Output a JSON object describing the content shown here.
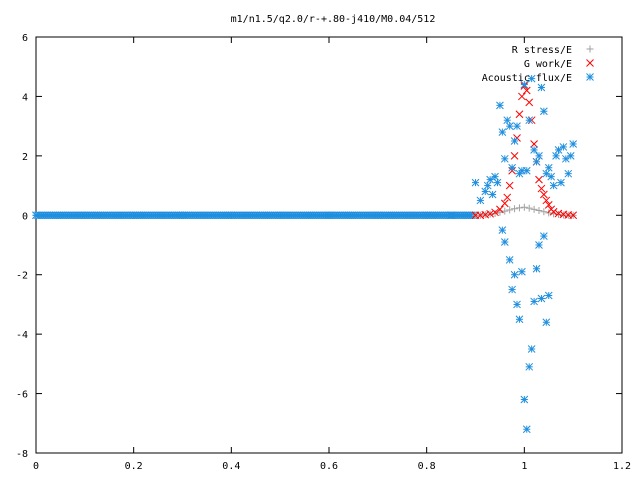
{
  "chart_data": {
    "type": "scatter",
    "title": "m1/n1.5/q2.0/r-+.80-j410/M0.04/512",
    "xlabel": "",
    "ylabel": "",
    "xlim": [
      0,
      1.2
    ],
    "ylim": [
      -8,
      6
    ],
    "x_ticks": [
      0,
      0.2,
      0.4,
      0.6,
      0.8,
      1,
      1.2
    ],
    "x_tick_labels": [
      "0",
      "0.2",
      "0.4",
      "0.6",
      "0.8",
      "1",
      "1.2"
    ],
    "y_ticks": [
      -8,
      -6,
      -4,
      -2,
      0,
      2,
      4,
      6
    ],
    "y_tick_labels": [
      "-8",
      "-6",
      "-4",
      "-2",
      "0",
      "2",
      "4",
      "6"
    ],
    "grid": false,
    "legend_position": "top-right",
    "series": [
      {
        "name": "R stress/E",
        "marker": "plus",
        "color": "#a0a0a0",
        "x": [
          0.9,
          0.91,
          0.92,
          0.93,
          0.94,
          0.95,
          0.96,
          0.97,
          0.98,
          0.99,
          1.0,
          1.01,
          1.02,
          1.03,
          1.04,
          1.05,
          1.06,
          1.07,
          1.08,
          1.09,
          1.1
        ],
        "y": [
          0.0,
          0.0,
          0.02,
          0.04,
          0.06,
          0.1,
          0.14,
          0.18,
          0.22,
          0.25,
          0.27,
          0.24,
          0.2,
          0.16,
          0.12,
          0.08,
          0.05,
          0.03,
          0.01,
          0.0,
          0.0
        ]
      },
      {
        "name": "G work/E",
        "marker": "cross",
        "color": "#ff0000",
        "x": [
          0.9,
          0.91,
          0.92,
          0.93,
          0.94,
          0.95,
          0.96,
          0.965,
          0.97,
          0.975,
          0.98,
          0.985,
          0.99,
          0.995,
          1.0,
          1.005,
          1.01,
          1.015,
          1.02,
          1.025,
          1.03,
          1.035,
          1.04,
          1.045,
          1.05,
          1.055,
          1.06,
          1.07,
          1.08,
          1.09,
          1.1
        ],
        "y": [
          0.0,
          0.0,
          0.02,
          0.05,
          0.1,
          0.2,
          0.4,
          0.6,
          1.0,
          1.5,
          2.0,
          2.6,
          3.4,
          4.0,
          4.35,
          4.2,
          3.8,
          3.2,
          2.4,
          1.8,
          1.2,
          0.9,
          0.7,
          0.5,
          0.35,
          0.2,
          0.12,
          0.06,
          0.03,
          0.01,
          0.0
        ]
      },
      {
        "name": "Acoustic flux/E",
        "marker": "star",
        "color": "#1f8fdf",
        "x": [
          0.0,
          0.1,
          0.2,
          0.3,
          0.4,
          0.5,
          0.6,
          0.7,
          0.8,
          0.85,
          0.88,
          0.9,
          0.91,
          0.92,
          0.925,
          0.93,
          0.935,
          0.94,
          0.945,
          0.95,
          0.955,
          0.96,
          0.965,
          0.97,
          0.975,
          0.98,
          0.985,
          0.99,
          0.995,
          1.0,
          1.005,
          1.01,
          1.015,
          1.02,
          1.025,
          1.03,
          1.035,
          1.04,
          1.045,
          1.05,
          1.055,
          1.06,
          1.065,
          1.07,
          1.075,
          1.08,
          1.085,
          1.09,
          1.095,
          1.1,
          0.955,
          0.96,
          0.97,
          0.975,
          0.98,
          0.985,
          0.99,
          0.995,
          1.0,
          1.005,
          1.01,
          1.015,
          1.02,
          1.025,
          1.03,
          1.035,
          1.04,
          1.045,
          1.05
        ],
        "y": [
          0.0,
          0.0,
          0.0,
          0.0,
          0.0,
          0.0,
          0.0,
          0.0,
          0.0,
          0.0,
          0.0,
          1.1,
          0.5,
          0.8,
          1.0,
          1.2,
          0.7,
          1.3,
          1.1,
          3.7,
          2.8,
          1.9,
          3.2,
          3.0,
          1.6,
          2.5,
          3.0,
          1.4,
          1.5,
          4.4,
          1.5,
          3.2,
          4.6,
          2.2,
          1.8,
          2.0,
          4.3,
          3.5,
          1.4,
          1.6,
          1.3,
          1.0,
          2.0,
          2.2,
          1.1,
          2.3,
          1.9,
          1.4,
          2.0,
          2.4,
          -0.5,
          -0.9,
          -1.5,
          -2.5,
          -2.0,
          -3.0,
          -3.5,
          -1.9,
          -6.2,
          -7.2,
          -5.1,
          -4.5,
          -2.9,
          -1.8,
          -1.0,
          -2.8,
          -0.7,
          -3.6,
          -2.7
        ]
      }
    ]
  }
}
